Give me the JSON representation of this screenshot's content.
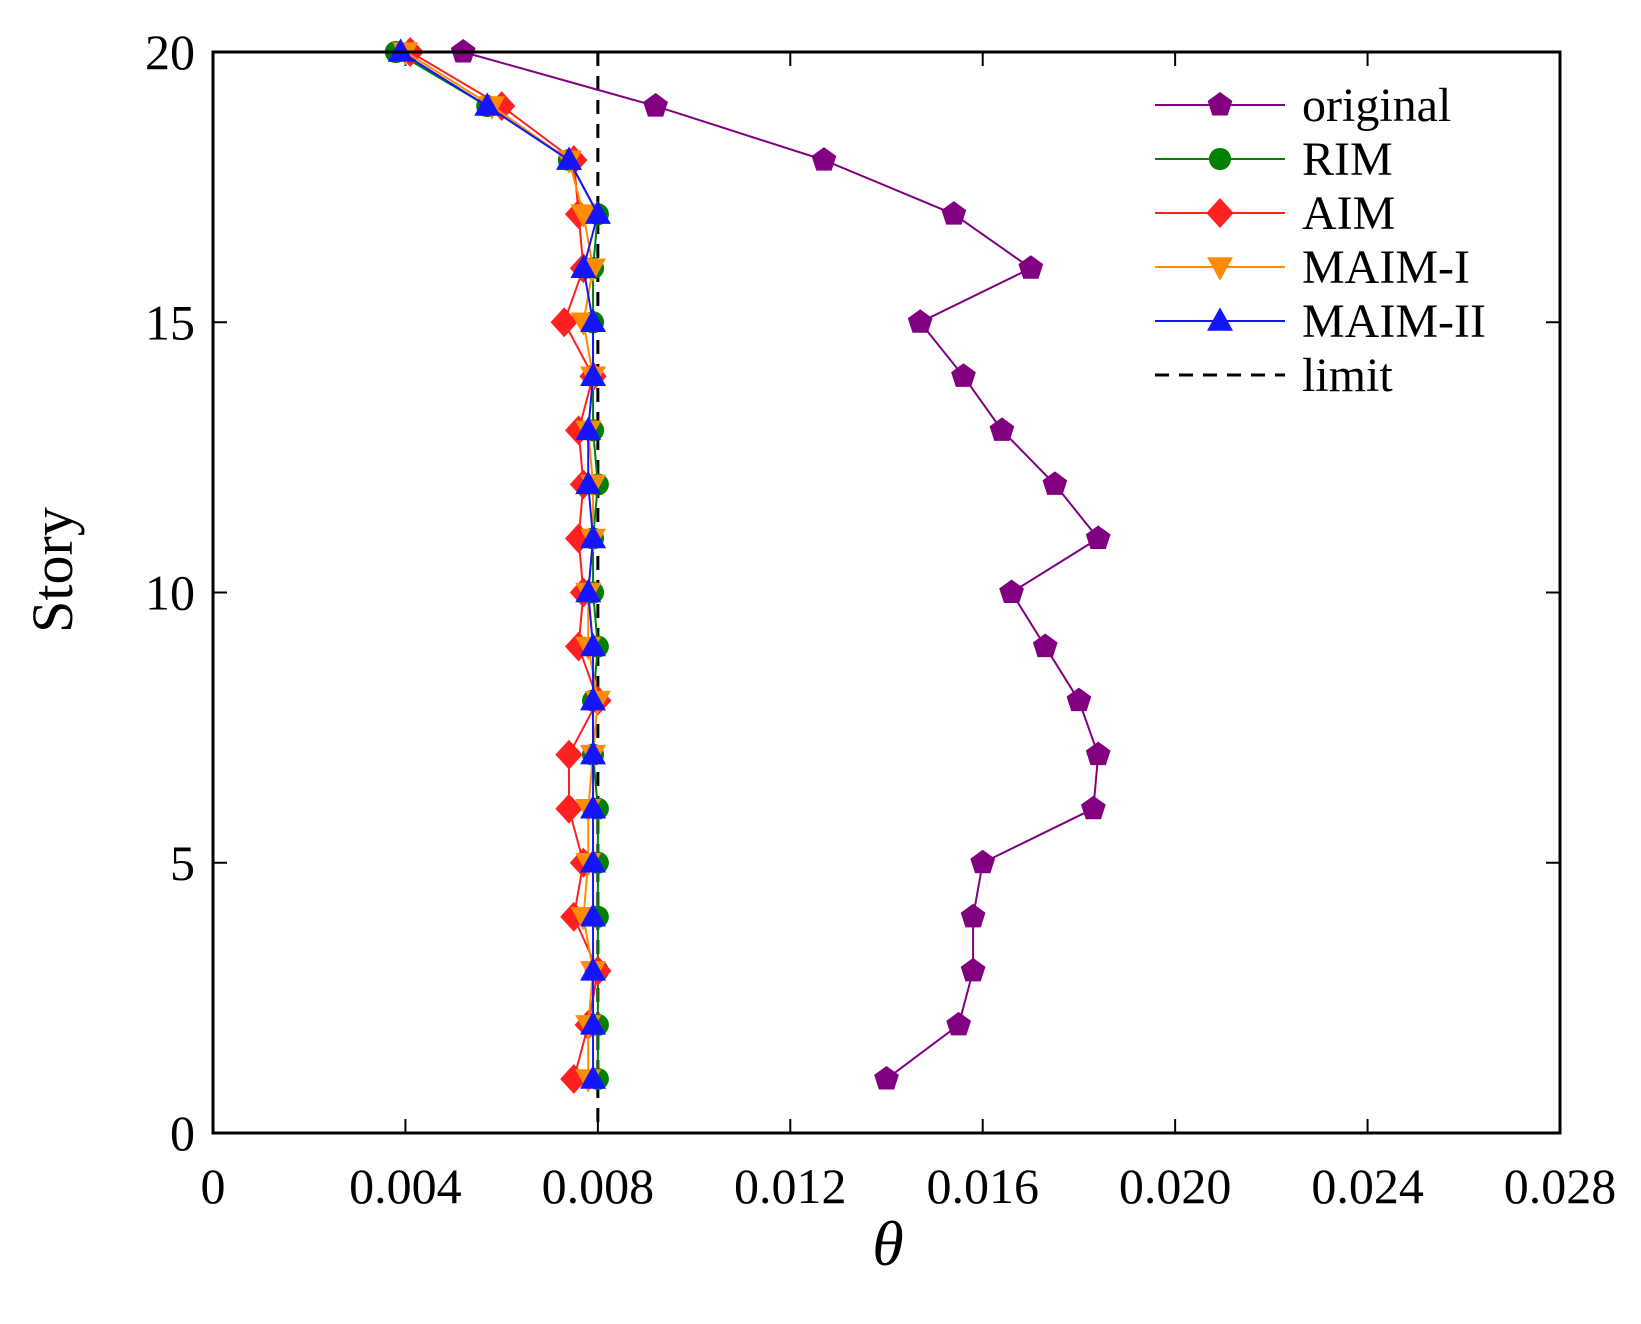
{
  "chart_data": {
    "type": "line",
    "orientation": "horizontal-profile",
    "title": "",
    "xlabel": "θ",
    "ylabel": "Story",
    "xlim": [
      0,
      0.028
    ],
    "ylim": [
      0,
      20
    ],
    "x_ticks": [
      0,
      0.004,
      0.008,
      0.012,
      0.016,
      0.02,
      0.024,
      0.028
    ],
    "x_tick_labels": [
      "0",
      "0.004",
      "0.008",
      "0.012",
      "0.016",
      "0.020",
      "0.024",
      "0.028"
    ],
    "y_ticks": [
      0,
      5,
      10,
      15,
      20
    ],
    "y_tick_labels": [
      "0",
      "5",
      "10",
      "15",
      "20"
    ],
    "grid": false,
    "legend_position": "top-right",
    "stories": [
      1,
      2,
      3,
      4,
      5,
      6,
      7,
      8,
      9,
      10,
      11,
      12,
      13,
      14,
      15,
      16,
      17,
      18,
      19,
      20
    ],
    "series": [
      {
        "name": "original",
        "color": "#800080",
        "marker": "pentagon",
        "values": [
          0.014,
          0.0155,
          0.0158,
          0.0158,
          0.016,
          0.0183,
          0.0184,
          0.018,
          0.0173,
          0.0166,
          0.0184,
          0.0175,
          0.0164,
          0.0156,
          0.0147,
          0.017,
          0.0154,
          0.0127,
          0.0092,
          0.0052
        ]
      },
      {
        "name": "RIM",
        "color": "#008000",
        "marker": "circle",
        "values": [
          0.008,
          0.008,
          0.008,
          0.008,
          0.008,
          0.008,
          0.0079,
          0.0079,
          0.008,
          0.0079,
          0.0079,
          0.008,
          0.0079,
          0.0079,
          0.0079,
          0.0079,
          0.008,
          0.0074,
          0.0057,
          0.0038
        ]
      },
      {
        "name": "AIM",
        "color": "#FF2020",
        "marker": "diamond",
        "values": [
          0.0075,
          0.0078,
          0.008,
          0.0075,
          0.0077,
          0.0074,
          0.0074,
          0.008,
          0.0076,
          0.0077,
          0.0076,
          0.0077,
          0.0076,
          0.0079,
          0.0073,
          0.0077,
          0.0076,
          0.0075,
          0.006,
          0.0041
        ]
      },
      {
        "name": "MAIM-I",
        "color": "#FF8C00",
        "marker": "triangle-down",
        "values": [
          0.0078,
          0.0078,
          0.0079,
          0.0077,
          0.0078,
          0.0078,
          0.0079,
          0.008,
          0.0078,
          0.0078,
          0.0079,
          0.0079,
          0.0078,
          0.0079,
          0.0077,
          0.0079,
          0.0077,
          0.0074,
          0.0058,
          0.004
        ]
      },
      {
        "name": "MAIM-II",
        "color": "#1414FF",
        "marker": "triangle-up",
        "values": [
          0.0079,
          0.0079,
          0.0079,
          0.0079,
          0.0079,
          0.0079,
          0.0079,
          0.0079,
          0.0079,
          0.0078,
          0.0079,
          0.0078,
          0.0078,
          0.0079,
          0.0079,
          0.0077,
          0.008,
          0.0074,
          0.0057,
          0.0039
        ]
      },
      {
        "name": "limit",
        "color": "#000000",
        "marker": "none",
        "line_style": "dashed",
        "constant_x": 0.008
      }
    ]
  }
}
